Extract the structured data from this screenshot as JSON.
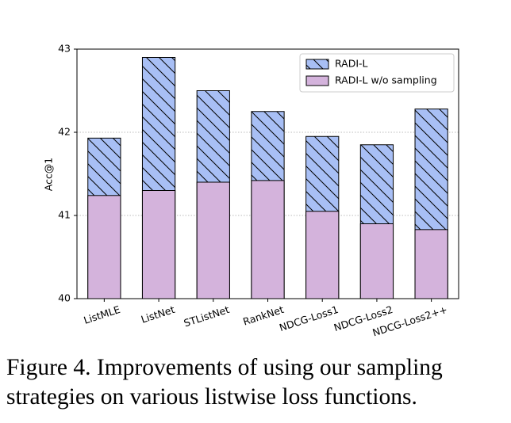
{
  "chart_data": {
    "type": "overlay-bar",
    "ylabel": "Acc@1",
    "categories": [
      "ListMLE",
      "ListNet",
      "STListNet",
      "RankNet",
      "NDCG-Loss1",
      "NDCG-Loss2",
      "NDCG-Loss2++"
    ],
    "series": [
      {
        "name": "RADI-L",
        "color": "#a8bff5",
        "hatch": true,
        "values": [
          41.93,
          42.9,
          42.5,
          42.25,
          41.95,
          41.85,
          42.28
        ]
      },
      {
        "name": "RADI-L w/o sampling",
        "color": "#d4b3dc",
        "hatch": false,
        "values": [
          41.24,
          41.3,
          41.4,
          41.42,
          41.05,
          40.9,
          40.83
        ]
      }
    ],
    "ylim": [
      40,
      43
    ],
    "yticks": [
      40,
      41,
      42,
      43
    ],
    "grid": true,
    "legend": "upper right"
  },
  "caption": "Figure 4. Improvements of using our sampling strategies on various listwise loss functions."
}
